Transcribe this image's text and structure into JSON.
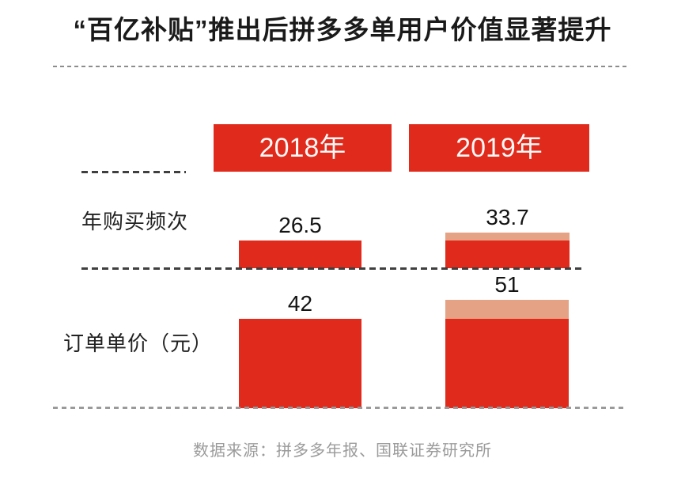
{
  "title": "“百亿补贴”推出后拼多多单用户价值显著提升",
  "columns": {
    "c2018": "2018年",
    "c2019": "2019年"
  },
  "rows": {
    "r1": {
      "label": "年购买频次",
      "v2018": "26.5",
      "v2019": "33.7"
    },
    "r2": {
      "label": "订单单价（元）",
      "v2018": "42",
      "v2019": "51"
    }
  },
  "source": "数据来源：拼多多年报、国联证券研究所",
  "colors": {
    "bar_red": "#E02A1C",
    "increment_salmon": "#E6A284",
    "title_text": "#1A1A1A",
    "source_text": "#9B9B9B"
  },
  "chart_data": {
    "type": "bar",
    "title": "“百亿补贴”推出后拼多多单用户价值显著提升",
    "categories": [
      "2018年",
      "2019年"
    ],
    "series": [
      {
        "name": "年购买频次",
        "values": [
          26.5,
          33.7
        ]
      },
      {
        "name": "订单单价（元）",
        "values": [
          42,
          51
        ]
      }
    ],
    "value_labels": [
      "26.5",
      "33.7",
      "42",
      "51"
    ],
    "legend": false,
    "grid": false,
    "layout_hint": "two horizontal metric rows; 2019 bars show 2018 base in red plus year-over-year increment as light salmon cap",
    "source": "数据来源：拼多多年报、国联证券研究所"
  }
}
